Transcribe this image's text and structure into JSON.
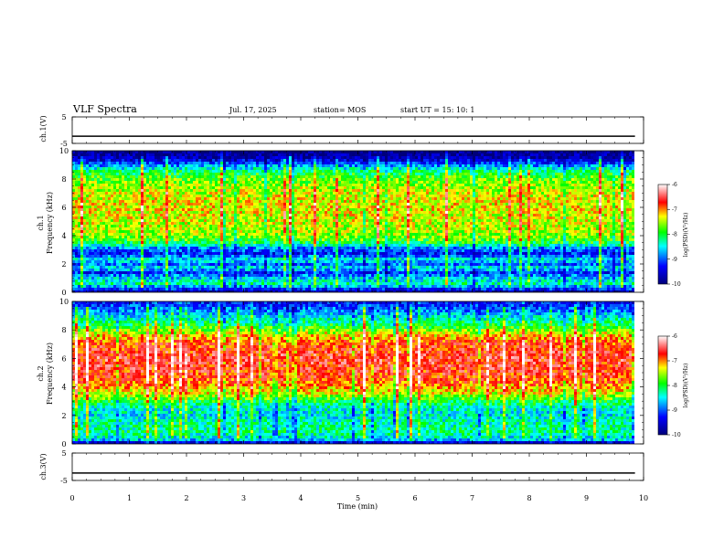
{
  "header": {
    "title": "VLF Spectra",
    "date": "Jul. 17, 2025",
    "station": "station= MOS",
    "start": "start UT = 15: 10: 1"
  },
  "chart_data": [
    {
      "type": "line",
      "id": "ch1-waveform",
      "ylabel": "ch.1(V)",
      "ylim": [
        -5,
        5
      ],
      "yticks": [
        5,
        -5
      ],
      "xlim": [
        0,
        10
      ],
      "series_level": -2.3
    },
    {
      "type": "heatmap",
      "id": "ch1-spectrogram",
      "ylabel": "ch.1\nFrequency (kHz)",
      "ylim": [
        0,
        10
      ],
      "yticks": [
        0,
        2,
        4,
        6,
        8,
        10
      ],
      "xlim": [
        0,
        10
      ],
      "data_until_min": 9.85,
      "colorbar": {
        "label": "log(PSD)(V²/Hz)",
        "range": [
          -10,
          -6
        ],
        "ticks": [
          -6,
          -7,
          -8,
          -9,
          -10
        ]
      },
      "frequency_profile_logpsd": [
        {
          "f": 0.0,
          "v": -9.8
        },
        {
          "f": 0.3,
          "v": -9.0
        },
        {
          "f": 0.6,
          "v": -8.3
        },
        {
          "f": 1.0,
          "v": -8.6
        },
        {
          "f": 1.4,
          "v": -9.2
        },
        {
          "f": 1.7,
          "v": -8.4
        },
        {
          "f": 2.0,
          "v": -9.0
        },
        {
          "f": 2.3,
          "v": -8.4
        },
        {
          "f": 2.7,
          "v": -9.3
        },
        {
          "f": 3.1,
          "v": -8.9
        },
        {
          "f": 3.5,
          "v": -8.0
        },
        {
          "f": 4.0,
          "v": -7.6
        },
        {
          "f": 5.0,
          "v": -7.4
        },
        {
          "f": 6.0,
          "v": -7.3
        },
        {
          "f": 7.0,
          "v": -7.4
        },
        {
          "f": 8.0,
          "v": -7.7
        },
        {
          "f": 8.6,
          "v": -8.2
        },
        {
          "f": 9.0,
          "v": -8.9
        },
        {
          "f": 9.4,
          "v": -9.6
        },
        {
          "f": 10.0,
          "v": -10.0
        }
      ]
    },
    {
      "type": "heatmap",
      "id": "ch2-spectrogram",
      "ylabel": "ch.2\nFrequency (kHz)",
      "ylim": [
        0,
        10
      ],
      "yticks": [
        0,
        2,
        4,
        6,
        8,
        10
      ],
      "xlim": [
        0,
        10
      ],
      "data_until_min": 9.85,
      "colorbar": {
        "label": "log(PSD)(V²/Hz)",
        "range": [
          -10,
          -6
        ],
        "ticks": [
          -6,
          -7,
          -8,
          -9,
          -10
        ]
      },
      "frequency_profile_logpsd": [
        {
          "f": 0.0,
          "v": -9.8
        },
        {
          "f": 0.3,
          "v": -8.6
        },
        {
          "f": 0.8,
          "v": -8.2
        },
        {
          "f": 1.5,
          "v": -8.3
        },
        {
          "f": 2.0,
          "v": -8.5
        },
        {
          "f": 2.5,
          "v": -8.4
        },
        {
          "f": 3.0,
          "v": -8.0
        },
        {
          "f": 3.5,
          "v": -7.4
        },
        {
          "f": 4.5,
          "v": -6.8
        },
        {
          "f": 6.0,
          "v": -6.6
        },
        {
          "f": 7.0,
          "v": -6.8
        },
        {
          "f": 7.6,
          "v": -7.2
        },
        {
          "f": 8.2,
          "v": -7.9
        },
        {
          "f": 8.8,
          "v": -8.4
        },
        {
          "f": 9.4,
          "v": -8.9
        },
        {
          "f": 10.0,
          "v": -9.3
        }
      ]
    },
    {
      "type": "line",
      "id": "ch3-waveform",
      "ylabel": "ch.3(V)",
      "ylim": [
        -5,
        5
      ],
      "yticks": [
        5,
        -5
      ],
      "xlim": [
        0,
        10
      ],
      "series_level": -2.3
    }
  ],
  "xaxis": {
    "label": "Time (min)",
    "ticks": [
      0,
      1,
      2,
      3,
      4,
      5,
      6,
      7,
      8,
      9,
      10
    ]
  },
  "colors": {
    "axes": "#000000",
    "colormap": [
      "#00007a",
      "#0000ff",
      "#00ffff",
      "#00ff00",
      "#ffff00",
      "#ff0000",
      "#ffffff"
    ]
  }
}
